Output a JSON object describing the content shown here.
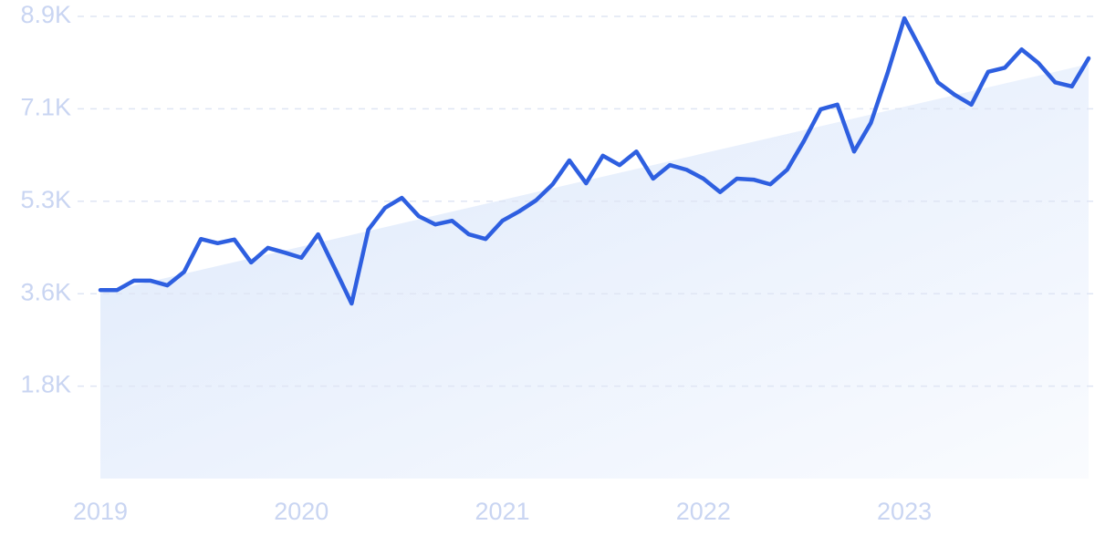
{
  "chart_data": {
    "type": "line",
    "categories": [
      "2019",
      null,
      null,
      null,
      null,
      null,
      null,
      null,
      null,
      null,
      null,
      null,
      "2020",
      null,
      null,
      null,
      null,
      null,
      null,
      null,
      null,
      null,
      null,
      null,
      "2021",
      null,
      null,
      null,
      null,
      null,
      null,
      null,
      null,
      null,
      null,
      null,
      "2022",
      null,
      null,
      null,
      null,
      null,
      null,
      null,
      null,
      null,
      null,
      null,
      "2023",
      null,
      null,
      null,
      null,
      null,
      null,
      null,
      null,
      null,
      null,
      null
    ],
    "values": [
      3620,
      3620,
      3800,
      3800,
      3710,
      3970,
      4600,
      4520,
      4590,
      4150,
      4430,
      4340,
      4240,
      4690,
      4030,
      3360,
      4780,
      5200,
      5390,
      5040,
      4880,
      4950,
      4690,
      4600,
      4950,
      5130,
      5340,
      5650,
      6110,
      5670,
      6200,
      6020,
      6280,
      5760,
      6020,
      5930,
      5760,
      5500,
      5760,
      5740,
      5650,
      5930,
      6480,
      7090,
      7180,
      6280,
      6830,
      7790,
      8840,
      8230,
      7610,
      7370,
      7180,
      7810,
      7890,
      8240,
      7980,
      7610,
      7530,
      8070
    ],
    "color": "#2e5fe0",
    "trend": [
      3560,
      7960
    ],
    "trend_color": "#dbe7fb",
    "ylim": [
      0,
      8875
    ],
    "yticks": [
      {
        "value": 1775,
        "label": "1.8K"
      },
      {
        "value": 3550,
        "label": "3.6K"
      },
      {
        "value": 5325,
        "label": "5.3K"
      },
      {
        "value": 7100,
        "label": "7.1K"
      },
      {
        "value": 8875,
        "label": "8.9K"
      }
    ],
    "grid": true
  }
}
